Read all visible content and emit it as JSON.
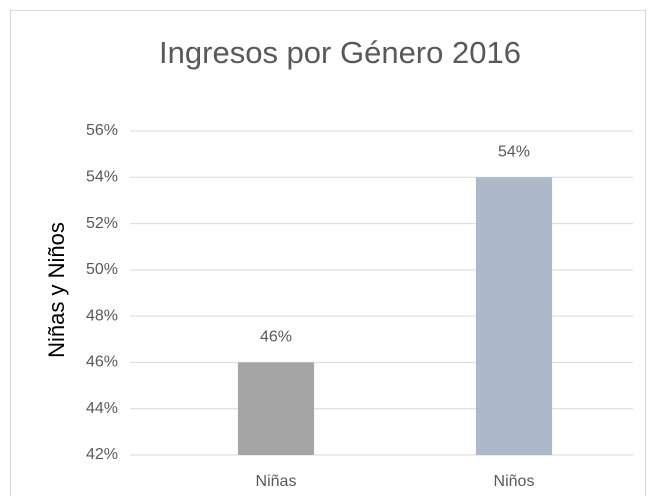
{
  "chart_data": {
    "type": "bar",
    "title": "Ingresos por Género 2016",
    "y_label": "Niñas y Niños",
    "categories": [
      "Niñas",
      "Niños"
    ],
    "values": [
      46,
      54
    ],
    "value_labels": [
      "46%",
      "54%"
    ],
    "colors": [
      "#a5a5a5",
      "#adb9ca"
    ],
    "ylim": [
      42,
      56
    ],
    "yticks": [
      {
        "value": 42,
        "label": "42%"
      },
      {
        "value": 44,
        "label": "44%"
      },
      {
        "value": 46,
        "label": "46%"
      },
      {
        "value": 48,
        "label": "48%"
      },
      {
        "value": 50,
        "label": "50%"
      },
      {
        "value": 52,
        "label": "52%"
      },
      {
        "value": 54,
        "label": "54%"
      },
      {
        "value": 56,
        "label": "56%"
      }
    ],
    "grid": true
  }
}
